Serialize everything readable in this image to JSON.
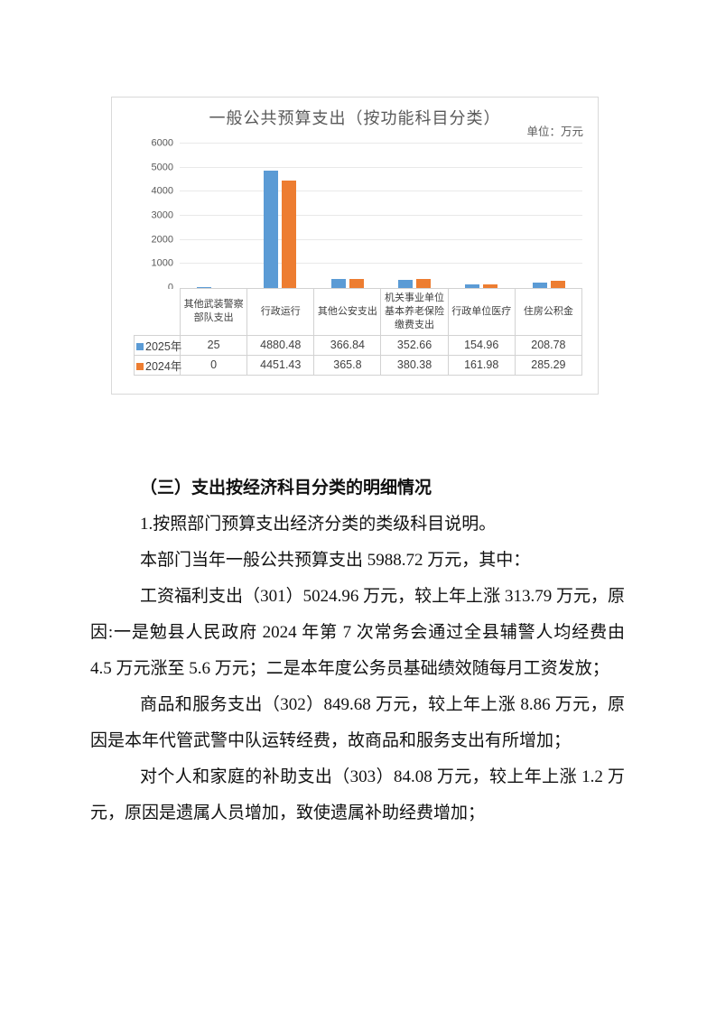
{
  "chart_data": {
    "type": "bar",
    "title": "一般公共预算支出（按功能科目分类）",
    "unit_text": "单位：万元",
    "categories": [
      "其他武装警察部队支出",
      "行政运行",
      "其他公安支出",
      "机关事业单位基本养老保险缴费支出",
      "行政单位医疗",
      "住房公积金"
    ],
    "series": [
      {
        "name": "2025年",
        "color": "#5B9BD5",
        "values": [
          25,
          4880.48,
          366.84,
          352.66,
          154.96,
          208.78
        ]
      },
      {
        "name": "2024年",
        "color": "#ED7D31",
        "values": [
          0,
          4451.43,
          365.8,
          380.38,
          161.98,
          285.29
        ]
      }
    ],
    "ylim": [
      0,
      6000
    ],
    "y_ticks": [
      0,
      1000,
      2000,
      3000,
      4000,
      5000,
      6000
    ],
    "grid": true,
    "legend_position": "table-rows-left",
    "colors": {
      "axis_text": "#595959",
      "gridline": "#e9e9e9",
      "table_border": "#d2d2d2",
      "frame_border": "#d9d9d9"
    }
  },
  "document": {
    "heading": "（三）支出按经济科目分类的明细情况",
    "paragraphs": [
      "1.按照部门预算支出经济分类的类级科目说明。",
      "本部门当年一般公共预算支出 5988.72 万元，其中：",
      "工资福利支出（301）5024.96 万元，较上年上涨 313.79 万元，原因:一是勉县人民政府 2024 年第 7 次常务会通过全县辅警人均经费由 4.5 万元涨至 5.6 万元；二是本年度公务员基础绩效随每月工资发放；",
      "商品和服务支出（302）849.68 万元，较上年上涨 8.86 万元，原因是本年代管武警中队运转经费，故商品和服务支出有所增加；",
      "对个人和家庭的补助支出（303）84.08 万元，较上年上涨 1.2 万元，原因是遗属人员增加，致使遗属补助经费增加；"
    ]
  }
}
